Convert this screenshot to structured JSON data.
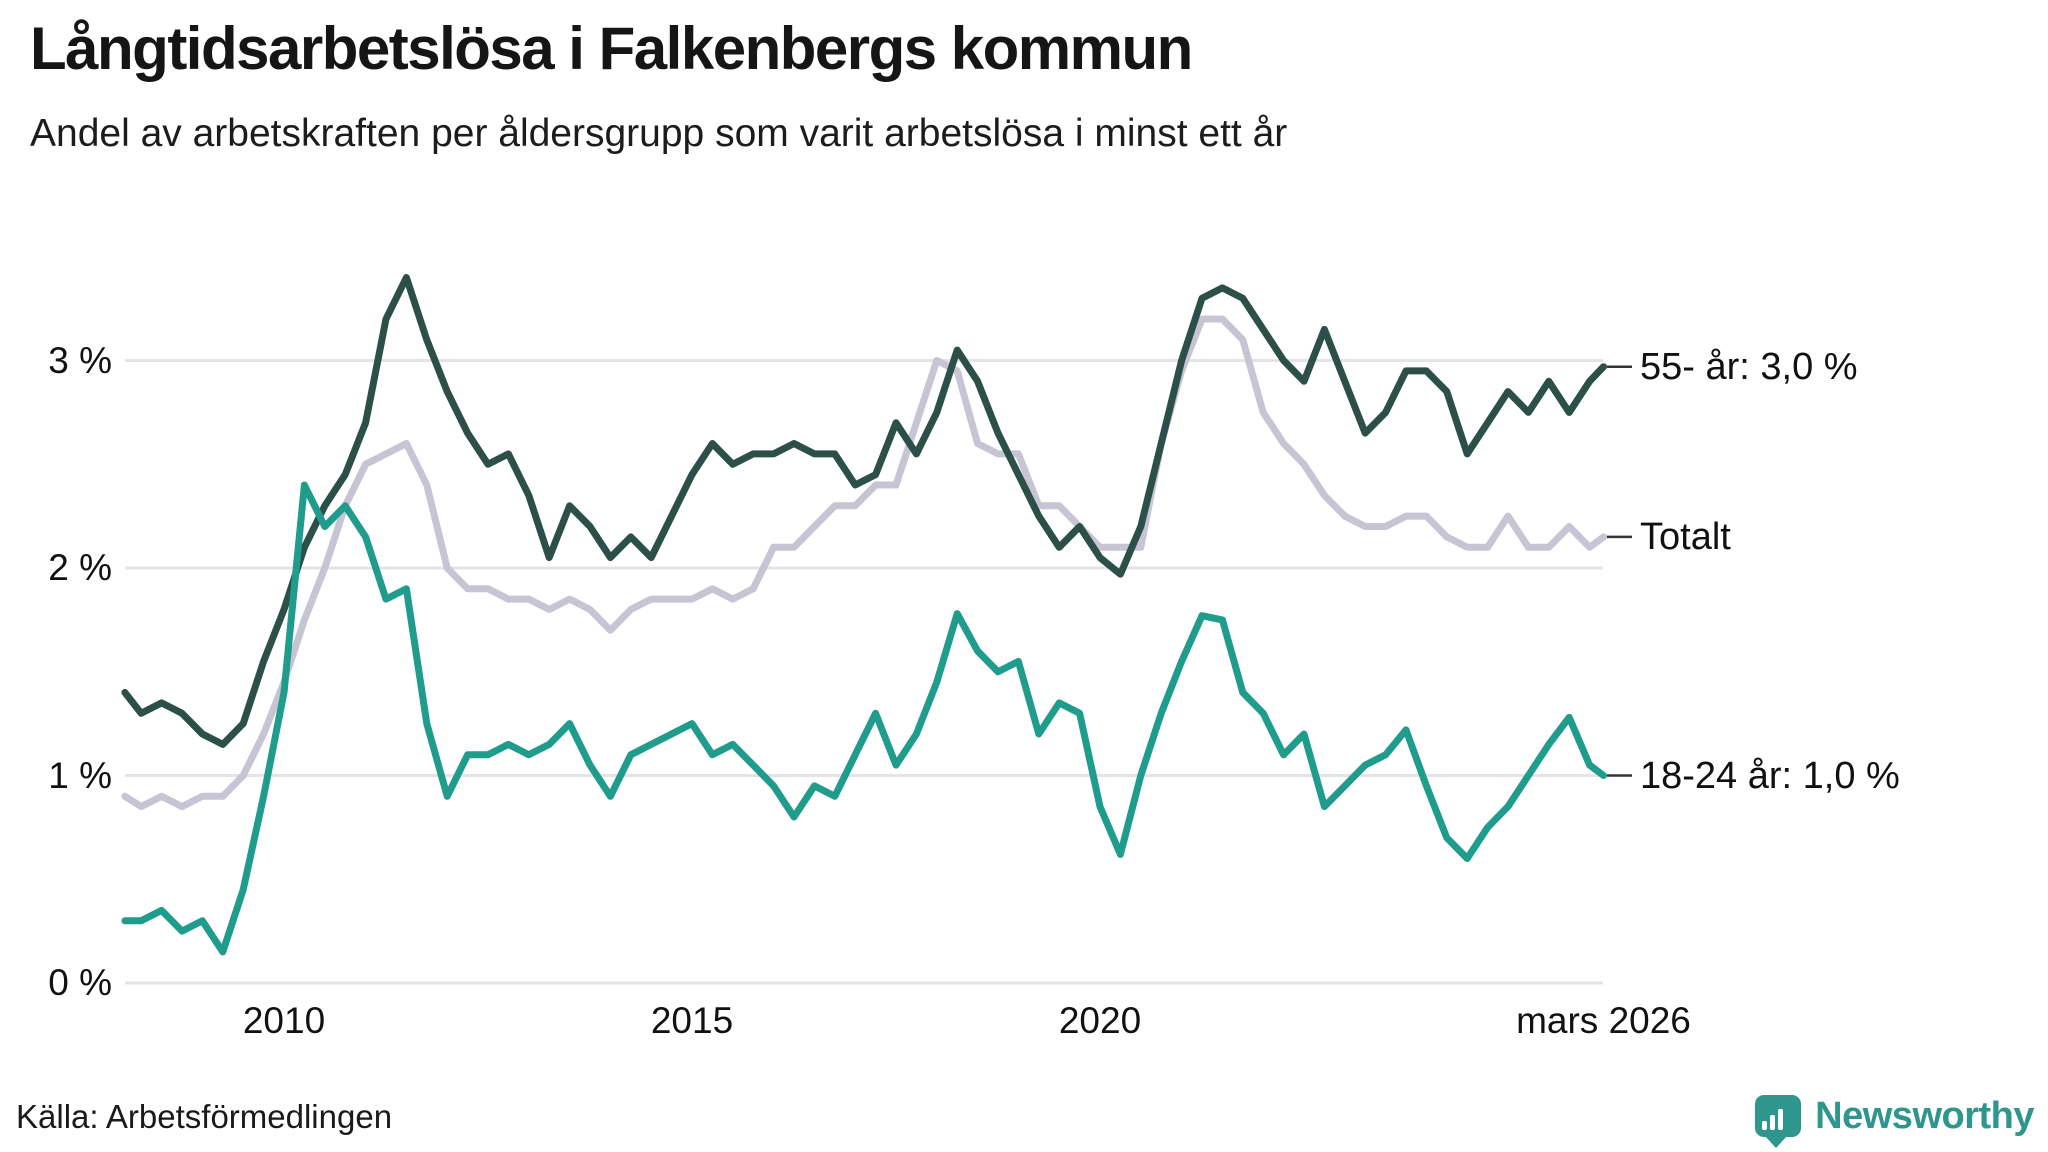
{
  "header": {
    "title": "Långtidsarbetslösa i Falkenbergs kommun",
    "subtitle": "Andel av arbetskraften per åldersgrupp som varit arbetslösa i minst ett år"
  },
  "footer": {
    "source": "Källa: Arbetsförmedlingen",
    "brand": "Newsworthy"
  },
  "colors": {
    "series_55": "#2c5048",
    "series_total": "#c7c4d3",
    "series_youth": "#1f9c8b",
    "gridline": "#e4e3e8",
    "label_tick": "#333333",
    "text": "#111111",
    "brand_teal": "#2f968d",
    "background": "#ffffff"
  },
  "chart_data": {
    "type": "line",
    "title": "Långtidsarbetslösa i Falkenbergs kommun",
    "subtitle": "Andel av arbetskraften per åldersgrupp som varit arbetslösa i minst ett år",
    "unit": "% av arbetskraften",
    "grid": true,
    "legend_position": "right-end-labels",
    "xlim": [
      2008.05,
      2026.17
    ],
    "ylim": [
      0,
      3.45
    ],
    "y_ticks": [
      {
        "label": "0 %",
        "value": 0
      },
      {
        "label": "1 %",
        "value": 1
      },
      {
        "label": "2 %",
        "value": 2
      },
      {
        "label": "3 %",
        "value": 3
      }
    ],
    "x_ticks": [
      {
        "label": "2010",
        "year": 2010
      },
      {
        "label": "2015",
        "year": 2015
      },
      {
        "label": "2020",
        "year": 2020
      },
      {
        "label": "mars 2026",
        "year": 2026.17
      }
    ],
    "x": [
      2008.05,
      2008.25,
      2008.5,
      2008.75,
      2009,
      2009.25,
      2009.5,
      2009.75,
      2010,
      2010.25,
      2010.5,
      2010.75,
      2011,
      2011.25,
      2011.5,
      2011.75,
      2012,
      2012.25,
      2012.5,
      2012.75,
      2013,
      2013.25,
      2013.5,
      2013.75,
      2014,
      2014.25,
      2014.5,
      2014.75,
      2015,
      2015.25,
      2015.5,
      2015.75,
      2016,
      2016.25,
      2016.5,
      2016.75,
      2017,
      2017.25,
      2017.5,
      2017.75,
      2018,
      2018.25,
      2018.5,
      2018.75,
      2019,
      2019.25,
      2019.5,
      2019.75,
      2020,
      2020.25,
      2020.5,
      2020.75,
      2021,
      2021.25,
      2021.5,
      2021.75,
      2022,
      2022.25,
      2022.5,
      2022.75,
      2023,
      2023.25,
      2023.5,
      2023.75,
      2024,
      2024.25,
      2024.5,
      2024.75,
      2025,
      2025.25,
      2025.5,
      2025.75,
      2026,
      2026.17
    ],
    "series": [
      {
        "name": "55- år",
        "label": "55- år: 3,0 %",
        "end_value_label": "3,0 %",
        "color": "#2c5048",
        "values": [
          1.4,
          1.3,
          1.35,
          1.3,
          1.2,
          1.15,
          1.25,
          1.55,
          1.8,
          2.1,
          2.3,
          2.45,
          2.7,
          3.2,
          3.4,
          3.1,
          2.85,
          2.65,
          2.5,
          2.55,
          2.35,
          2.05,
          2.3,
          2.2,
          2.05,
          2.15,
          2.05,
          2.25,
          2.45,
          2.6,
          2.5,
          2.55,
          2.55,
          2.6,
          2.55,
          2.55,
          2.4,
          2.45,
          2.7,
          2.55,
          2.75,
          3.05,
          2.9,
          2.65,
          2.45,
          2.25,
          2.1,
          2.2,
          2.05,
          1.97,
          2.2,
          2.6,
          3.0,
          3.3,
          3.35,
          3.3,
          3.15,
          3.0,
          2.9,
          3.15,
          2.9,
          2.65,
          2.75,
          2.95,
          2.95,
          2.85,
          2.55,
          2.7,
          2.85,
          2.75,
          2.9,
          2.75,
          2.9,
          2.97
        ]
      },
      {
        "name": "Totalt",
        "label": "Totalt",
        "end_value_label": "",
        "color": "#c7c4d3",
        "values": [
          0.9,
          0.85,
          0.9,
          0.85,
          0.9,
          0.9,
          1.0,
          1.2,
          1.45,
          1.75,
          2.0,
          2.3,
          2.5,
          2.55,
          2.6,
          2.4,
          2.0,
          1.9,
          1.9,
          1.85,
          1.85,
          1.8,
          1.85,
          1.8,
          1.7,
          1.8,
          1.85,
          1.85,
          1.85,
          1.9,
          1.85,
          1.9,
          2.1,
          2.1,
          2.2,
          2.3,
          2.3,
          2.4,
          2.4,
          2.7,
          3.0,
          2.95,
          2.6,
          2.55,
          2.55,
          2.3,
          2.3,
          2.2,
          2.1,
          2.1,
          2.1,
          2.6,
          2.95,
          3.2,
          3.2,
          3.1,
          2.75,
          2.6,
          2.5,
          2.35,
          2.25,
          2.2,
          2.2,
          2.25,
          2.25,
          2.15,
          2.1,
          2.1,
          2.25,
          2.1,
          2.1,
          2.2,
          2.1,
          2.15
        ]
      },
      {
        "name": "18-24 år",
        "label": "18-24 år: 1,0 %",
        "end_value_label": "1,0 %",
        "color": "#1f9c8b",
        "values": [
          0.3,
          0.3,
          0.35,
          0.25,
          0.3,
          0.15,
          0.45,
          0.9,
          1.4,
          2.4,
          2.2,
          2.3,
          2.15,
          1.85,
          1.9,
          1.25,
          0.9,
          1.1,
          1.1,
          1.15,
          1.1,
          1.15,
          1.25,
          1.05,
          0.9,
          1.1,
          1.15,
          1.2,
          1.25,
          1.1,
          1.15,
          1.05,
          0.95,
          0.8,
          0.95,
          0.9,
          1.1,
          1.3,
          1.05,
          1.2,
          1.45,
          1.78,
          1.6,
          1.5,
          1.55,
          1.2,
          1.35,
          1.3,
          0.85,
          0.62,
          1.0,
          1.3,
          1.55,
          1.77,
          1.75,
          1.4,
          1.3,
          1.1,
          1.2,
          0.85,
          0.95,
          1.05,
          1.1,
          1.22,
          0.95,
          0.7,
          0.6,
          0.75,
          0.85,
          1.0,
          1.15,
          1.28,
          1.05,
          1.0
        ]
      }
    ]
  }
}
